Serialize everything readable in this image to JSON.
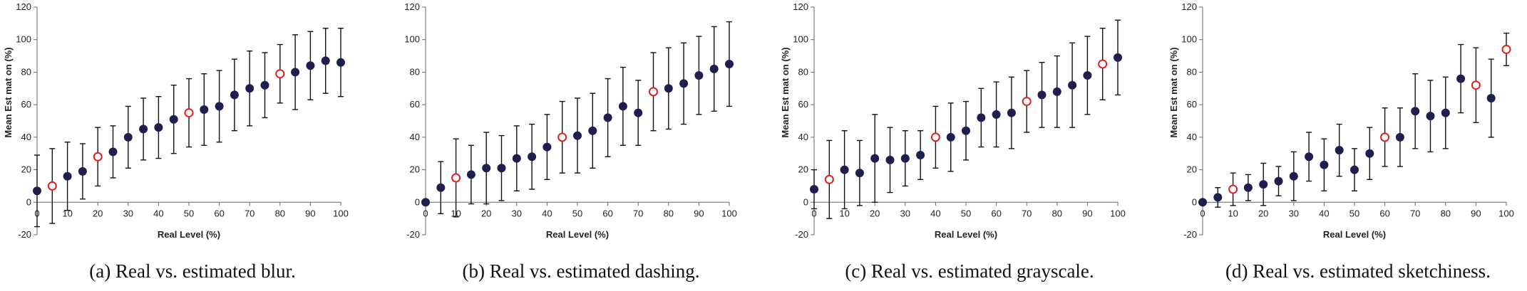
{
  "chart_data": [
    {
      "type": "scatter",
      "caption": "(a)  Real vs. estimated blur.",
      "xlabel": "Real Level (%)",
      "ylabel": "Mean Est mat on (%)",
      "xlim": [
        0,
        100
      ],
      "ylim": [
        -20,
        120
      ],
      "xticks": [
        0,
        10,
        20,
        30,
        40,
        50,
        60,
        70,
        80,
        90,
        100
      ],
      "yticks": [
        -20,
        0,
        20,
        40,
        60,
        80,
        100,
        120
      ],
      "colors": {
        "filled": "#1f1f4f",
        "highlight": "#e02020",
        "error_bar": "#111111"
      },
      "series": [
        {
          "x": [
            0,
            5,
            10,
            15,
            20,
            25,
            30,
            35,
            40,
            45,
            50,
            55,
            60,
            65,
            70,
            75,
            80,
            85,
            90,
            95,
            100
          ],
          "y": [
            7,
            10,
            16,
            19,
            28,
            31,
            40,
            45,
            46,
            51,
            55,
            57,
            59,
            66,
            70,
            72,
            79,
            80,
            84,
            87,
            86
          ],
          "error": [
            22,
            23,
            21,
            17,
            18,
            16,
            19,
            19,
            19,
            21,
            21,
            22,
            22,
            22,
            23,
            20,
            18,
            23,
            21,
            20,
            21
          ],
          "highlight": [
            false,
            true,
            false,
            false,
            true,
            false,
            false,
            false,
            false,
            false,
            true,
            false,
            false,
            false,
            false,
            false,
            true,
            false,
            false,
            false,
            false
          ]
        }
      ]
    },
    {
      "type": "scatter",
      "caption": "(b)  Real vs. estimated dashing.",
      "xlabel": "Real Level (%)",
      "ylabel": "",
      "xlim": [
        0,
        100
      ],
      "ylim": [
        -20,
        120
      ],
      "xticks": [
        0,
        10,
        20,
        30,
        40,
        50,
        60,
        70,
        80,
        90,
        100
      ],
      "yticks": [
        -20,
        0,
        20,
        40,
        60,
        80,
        100,
        120
      ],
      "colors": {
        "filled": "#1f1f4f",
        "highlight": "#e02020",
        "error_bar": "#111111"
      },
      "series": [
        {
          "x": [
            0,
            5,
            10,
            15,
            20,
            25,
            30,
            35,
            40,
            45,
            50,
            55,
            60,
            65,
            70,
            75,
            80,
            85,
            90,
            95,
            100
          ],
          "y": [
            0,
            9,
            15,
            17,
            21,
            21,
            27,
            28,
            34,
            40,
            41,
            44,
            52,
            59,
            55,
            68,
            70,
            73,
            78,
            82,
            85
          ],
          "error": [
            0,
            16,
            24,
            18,
            22,
            20,
            20,
            20,
            20,
            22,
            23,
            23,
            24,
            24,
            20,
            24,
            25,
            25,
            24,
            26,
            26
          ],
          "highlight": [
            false,
            false,
            true,
            false,
            false,
            false,
            false,
            false,
            false,
            true,
            false,
            false,
            false,
            false,
            false,
            true,
            false,
            false,
            false,
            false,
            false
          ]
        }
      ]
    },
    {
      "type": "scatter",
      "caption": "(c)  Real vs. estimated grayscale.",
      "xlabel": "Real Level (%)",
      "ylabel": "Mean Est mat on (%)",
      "xlim": [
        0,
        100
      ],
      "ylim": [
        -20,
        120
      ],
      "xticks": [
        0,
        10,
        20,
        30,
        40,
        50,
        60,
        70,
        80,
        90,
        100
      ],
      "yticks": [
        -20,
        0,
        20,
        40,
        60,
        80,
        100,
        120
      ],
      "colors": {
        "filled": "#1f1f4f",
        "highlight": "#e02020",
        "error_bar": "#111111"
      },
      "series": [
        {
          "x": [
            0,
            5,
            10,
            15,
            20,
            25,
            30,
            35,
            40,
            45,
            50,
            55,
            60,
            65,
            70,
            75,
            80,
            85,
            90,
            95,
            100
          ],
          "y": [
            8,
            14,
            20,
            18,
            27,
            26,
            27,
            29,
            40,
            40,
            44,
            52,
            54,
            55,
            62,
            66,
            68,
            72,
            78,
            85,
            89
          ],
          "error": [
            12,
            24,
            24,
            20,
            27,
            20,
            17,
            15,
            19,
            21,
            18,
            18,
            20,
            22,
            19,
            20,
            22,
            26,
            24,
            22,
            23
          ],
          "highlight": [
            false,
            true,
            false,
            false,
            false,
            false,
            false,
            false,
            true,
            false,
            false,
            false,
            false,
            false,
            true,
            false,
            false,
            false,
            false,
            true,
            false
          ]
        }
      ]
    },
    {
      "type": "scatter",
      "caption": "(d)  Real vs. estimated sketchiness.",
      "xlabel": "Real Level (%)",
      "ylabel": "Mean Est mat on (%)",
      "xlim": [
        0,
        100
      ],
      "ylim": [
        -20,
        120
      ],
      "xticks": [
        0,
        10,
        20,
        30,
        40,
        50,
        60,
        70,
        80,
        90,
        100
      ],
      "yticks": [
        -20,
        0,
        20,
        40,
        60,
        80,
        100,
        120
      ],
      "colors": {
        "filled": "#1f1f4f",
        "highlight": "#e02020",
        "error_bar": "#111111"
      },
      "series": [
        {
          "x": [
            0,
            5,
            10,
            15,
            20,
            25,
            30,
            35,
            40,
            45,
            50,
            55,
            60,
            65,
            70,
            75,
            80,
            85,
            90,
            95,
            100
          ],
          "y": [
            0,
            3,
            8,
            9,
            11,
            13,
            16,
            28,
            23,
            32,
            20,
            30,
            40,
            40,
            56,
            53,
            55,
            76,
            72,
            64,
            94
          ],
          "error": [
            0,
            6,
            10,
            8,
            13,
            9,
            15,
            15,
            16,
            16,
            13,
            16,
            18,
            18,
            23,
            22,
            22,
            21,
            23,
            24,
            10
          ],
          "highlight": [
            false,
            false,
            true,
            false,
            false,
            false,
            false,
            false,
            false,
            false,
            false,
            false,
            true,
            false,
            false,
            false,
            false,
            false,
            true,
            false,
            true
          ]
        }
      ]
    }
  ]
}
